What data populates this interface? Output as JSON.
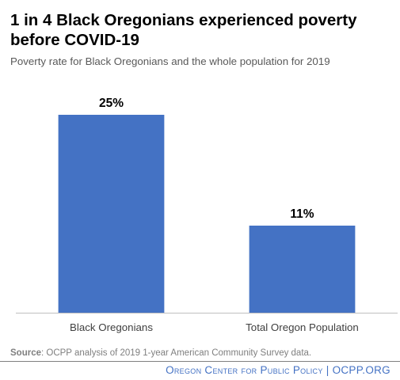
{
  "title": "1 in 4 Black Oregonians experienced poverty before COVID-19",
  "subtitle": "Poverty rate for Black Oregonians and the whole population for 2019",
  "source": {
    "label": "Source",
    "text": ": OCPP analysis of 2019 1-year American Community Survey data."
  },
  "footer": "Oregon Center for Public Policy | OCPP.ORG",
  "colors": {
    "bar": "#4472c4",
    "axis": "#bfbfbf",
    "footer": "#4472c4"
  },
  "chart_data": {
    "type": "bar",
    "title": "1 in 4 Black Oregonians experienced poverty before COVID-19",
    "subtitle": "Poverty rate for Black Oregonians and the whole population for 2019",
    "categories": [
      "Black Oregonians",
      "Total Oregon Population"
    ],
    "values": [
      25,
      11
    ],
    "data_labels": [
      "25%",
      "11%"
    ],
    "ylim": [
      0,
      30
    ],
    "xlabel": "",
    "ylabel": "",
    "grid": false,
    "legend": "none"
  }
}
